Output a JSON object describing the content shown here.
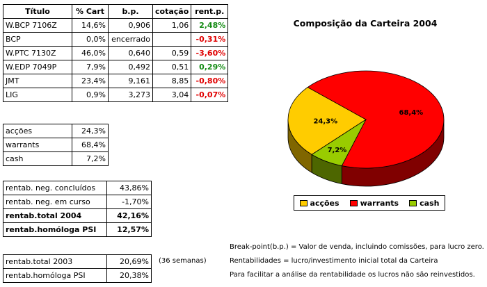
{
  "holdings": {
    "headers": [
      "Título",
      "% Cart",
      "b.p.",
      "cotação",
      "rent.p."
    ],
    "rows": [
      {
        "titulo": "W.BCP 7106Z",
        "cart": "14,6%",
        "bp": "0,906",
        "cotacao": "1,06",
        "rent": "2,48%",
        "sign": "pos"
      },
      {
        "titulo": "BCP",
        "cart": "0,0%",
        "bp": "encerrado",
        "cotacao": "",
        "rent": "-0,31%",
        "sign": "neg"
      },
      {
        "titulo": "W.PTC 7130Z",
        "cart": "46,0%",
        "bp": "0,640",
        "cotacao": "0,59",
        "rent": "-3,60%",
        "sign": "neg"
      },
      {
        "titulo": "W.EDP 7049P",
        "cart": "7,9%",
        "bp": "0,492",
        "cotacao": "0,51",
        "rent": "0,29%",
        "sign": "pos"
      },
      {
        "titulo": "JMT",
        "cart": "23,4%",
        "bp": "9,161",
        "cotacao": "8,85",
        "rent": "-0,80%",
        "sign": "neg"
      },
      {
        "titulo": "LIG",
        "cart": "0,9%",
        "bp": "3,273",
        "cotacao": "3,04",
        "rent": "-0,07%",
        "sign": "neg"
      }
    ]
  },
  "composition": [
    {
      "label": "acções",
      "value": "24,3%"
    },
    {
      "label": "warrants",
      "value": "68,4%"
    },
    {
      "label": "cash",
      "value": "7,2%"
    }
  ],
  "returns": [
    {
      "label": "rentab. neg. concluídos",
      "value": "43,86%",
      "bold": false
    },
    {
      "label": "rentab. neg. em curso",
      "value": "-1,70%",
      "bold": false
    },
    {
      "label": "rentab.total 2004",
      "value": "42,16%",
      "bold": true
    },
    {
      "label": "rentab.homóloga PSI",
      "value": "12,57%",
      "bold": true
    }
  ],
  "history": [
    {
      "label": "rentab.total 2003",
      "value": "20,69%"
    },
    {
      "label": "rentab.homóloga PSI",
      "value": "20,38%"
    }
  ],
  "weeks_note": "(36 semanas)",
  "notes": [
    "Break-point(b.p.) = Valor de venda, incluindo comissões, para lucro zero.",
    "Rentabilidades = lucro/investimento inicial total da Carteira",
    "Para facilitar a análise da rentabilidade os lucros não são reinvestidos."
  ],
  "chart_data": {
    "type": "pie",
    "title": "Composição da Carteira 2004",
    "categories": [
      "acções",
      "warrants",
      "cash"
    ],
    "values": [
      24.3,
      68.4,
      7.2
    ],
    "labels": [
      "24,3%",
      "68,4%",
      "7,2%"
    ],
    "colors": [
      "#ffcc00",
      "#ff0000",
      "#99cc00"
    ],
    "side_colors": [
      "#806600",
      "#800000",
      "#4d6600"
    ],
    "legend": "bottom"
  }
}
